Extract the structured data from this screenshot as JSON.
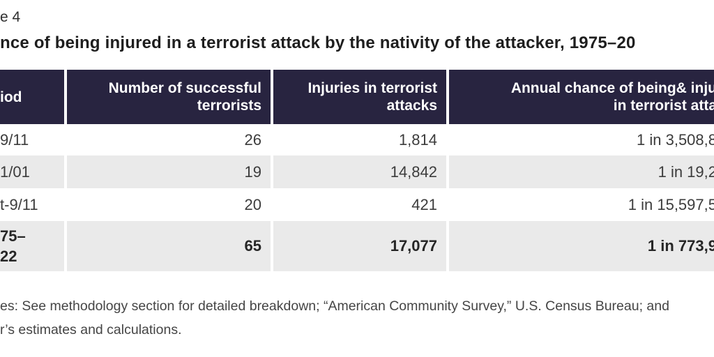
{
  "table_label": "e 4",
  "title": "nce of being injured in a terrorist attack by the nativity of the attacker, 1975–20",
  "table": {
    "headers": [
      "iod",
      "Number of successful\nterrorists",
      "Injuries in terrorist\nattacks",
      "Annual chance of being& inju\nin terrorist atta"
    ],
    "rows": [
      {
        "period": "9/11",
        "terrorists": "26",
        "injuries": "1,814",
        "chance": "1 in 3,508,8"
      },
      {
        "period": "1/01",
        "terrorists": "19",
        "injuries": "14,842",
        "chance": "1 in 19,2"
      },
      {
        "period": "t-9/11",
        "terrorists": "20",
        "injuries": "421",
        "chance": "1 in 15,597,5"
      },
      {
        "period": "75–\n22",
        "terrorists": "65",
        "injuries": "17,077",
        "chance": "1 in 773,9"
      }
    ]
  },
  "notes": {
    "line1": "es: See methodology section for detailed breakdown; “American Community Survey,” U.S. Census Bureau; and",
    "line2": "r’s estimates and calculations."
  },
  "colors": {
    "header_bg": "#282440",
    "row_alt": "#eaeaea",
    "text": "#3c3c3c",
    "text_strong": "#262626",
    "title": "#1e1e1e",
    "notes": "#454545"
  }
}
